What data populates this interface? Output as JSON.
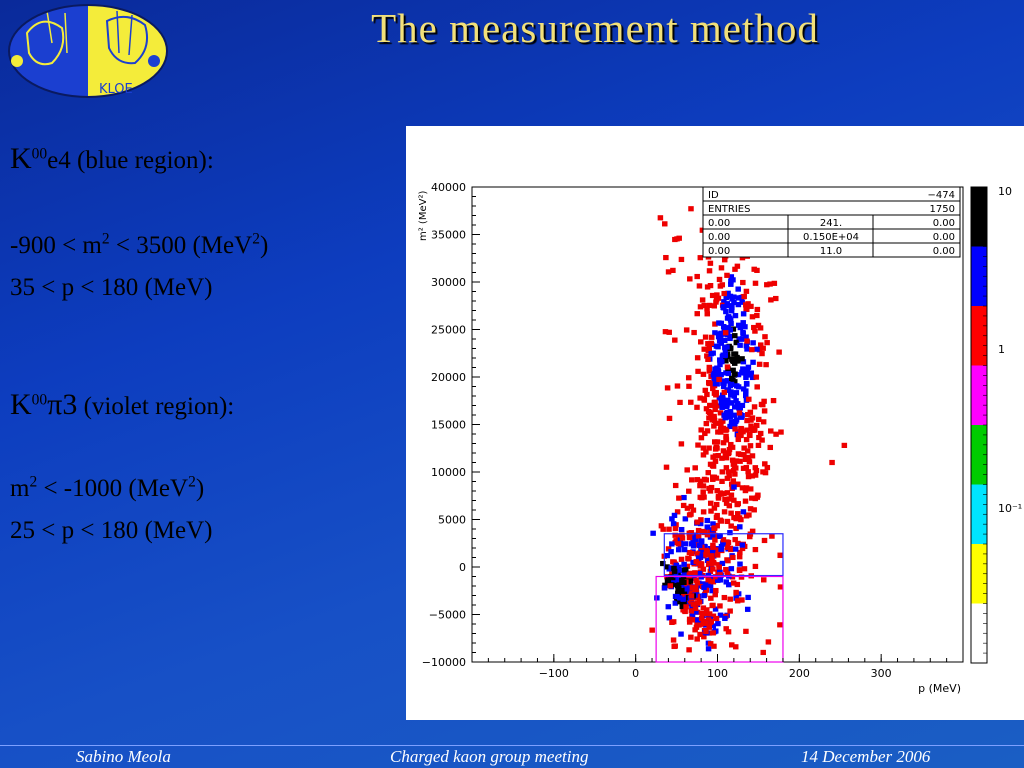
{
  "slide": {
    "title": "The measurement method",
    "logo_text": "KLOE"
  },
  "left_text": {
    "k00e4": {
      "k": "K",
      "sup": "00",
      "rest": "e4",
      "desc": " (blue region):"
    },
    "cut1": {
      "a": "-900 < m",
      "sup1": "2",
      "b": " < 3500 (MeV",
      "sup2": "2",
      "c": ")"
    },
    "cut2": "35 < p < 180 (MeV)",
    "k00pi3": {
      "k": "K",
      "sup": "00",
      "rest": "π3",
      "desc": " (violet region):"
    },
    "cut3": {
      "a": "m",
      "sup1": "2",
      "b": " < -1000 (MeV",
      "sup2": "2",
      "c": ")"
    },
    "cut4": "25 < p < 180 (MeV)"
  },
  "footer": {
    "author": "Sabino Meola",
    "meeting": "Charged kaon group meeting",
    "date": "14 December 2006"
  },
  "chart_data": {
    "type": "heatmap",
    "xlabel": "p (MeV)",
    "ylabel": "m² (MeV²)",
    "xlim": [
      -200,
      400
    ],
    "ylim": [
      -10000,
      40000
    ],
    "x_ticks": [
      -100,
      0,
      100,
      200,
      300
    ],
    "y_ticks": [
      -10000,
      -5000,
      0,
      5000,
      10000,
      15000,
      20000,
      25000,
      30000,
      35000,
      40000
    ],
    "stats_box": {
      "rows": [
        [
          "ID",
          "",
          "-474"
        ],
        [
          "ENTRIES",
          "",
          "1750"
        ],
        [
          "0.00",
          "241.",
          "0.00"
        ],
        [
          "0.00",
          "0.150E+04",
          "0.00"
        ],
        [
          "0.00",
          "11.0",
          "0.00"
        ]
      ]
    },
    "color_scale": {
      "labels": [
        "10",
        "1",
        "10⁻¹"
      ],
      "colors": [
        "#000000",
        "#0000ff",
        "#ff0000",
        "#ff00ff",
        "#00cc00",
        "#00e5ff",
        "#ffff00",
        "#ffffff"
      ]
    },
    "regions": [
      {
        "name": "blue region",
        "color": "#2a2aff",
        "p": [
          35,
          180
        ],
        "m2": [
          -900,
          3500
        ]
      },
      {
        "name": "violet region",
        "color": "#ee00ee",
        "p": [
          25,
          180
        ],
        "m2": [
          -10000,
          -1000
        ]
      }
    ],
    "clusters": [
      {
        "name": "K00e4 band",
        "p_range": [
          60,
          150
        ],
        "m2_range": [
          -2000,
          30000
        ],
        "peak_p": 120,
        "peak_m2": 22000
      },
      {
        "name": "K00pi3 band",
        "p_range": [
          30,
          110
        ],
        "m2_range": [
          -10000,
          3000
        ],
        "peak_p": 55,
        "peak_m2": -2000
      }
    ]
  }
}
